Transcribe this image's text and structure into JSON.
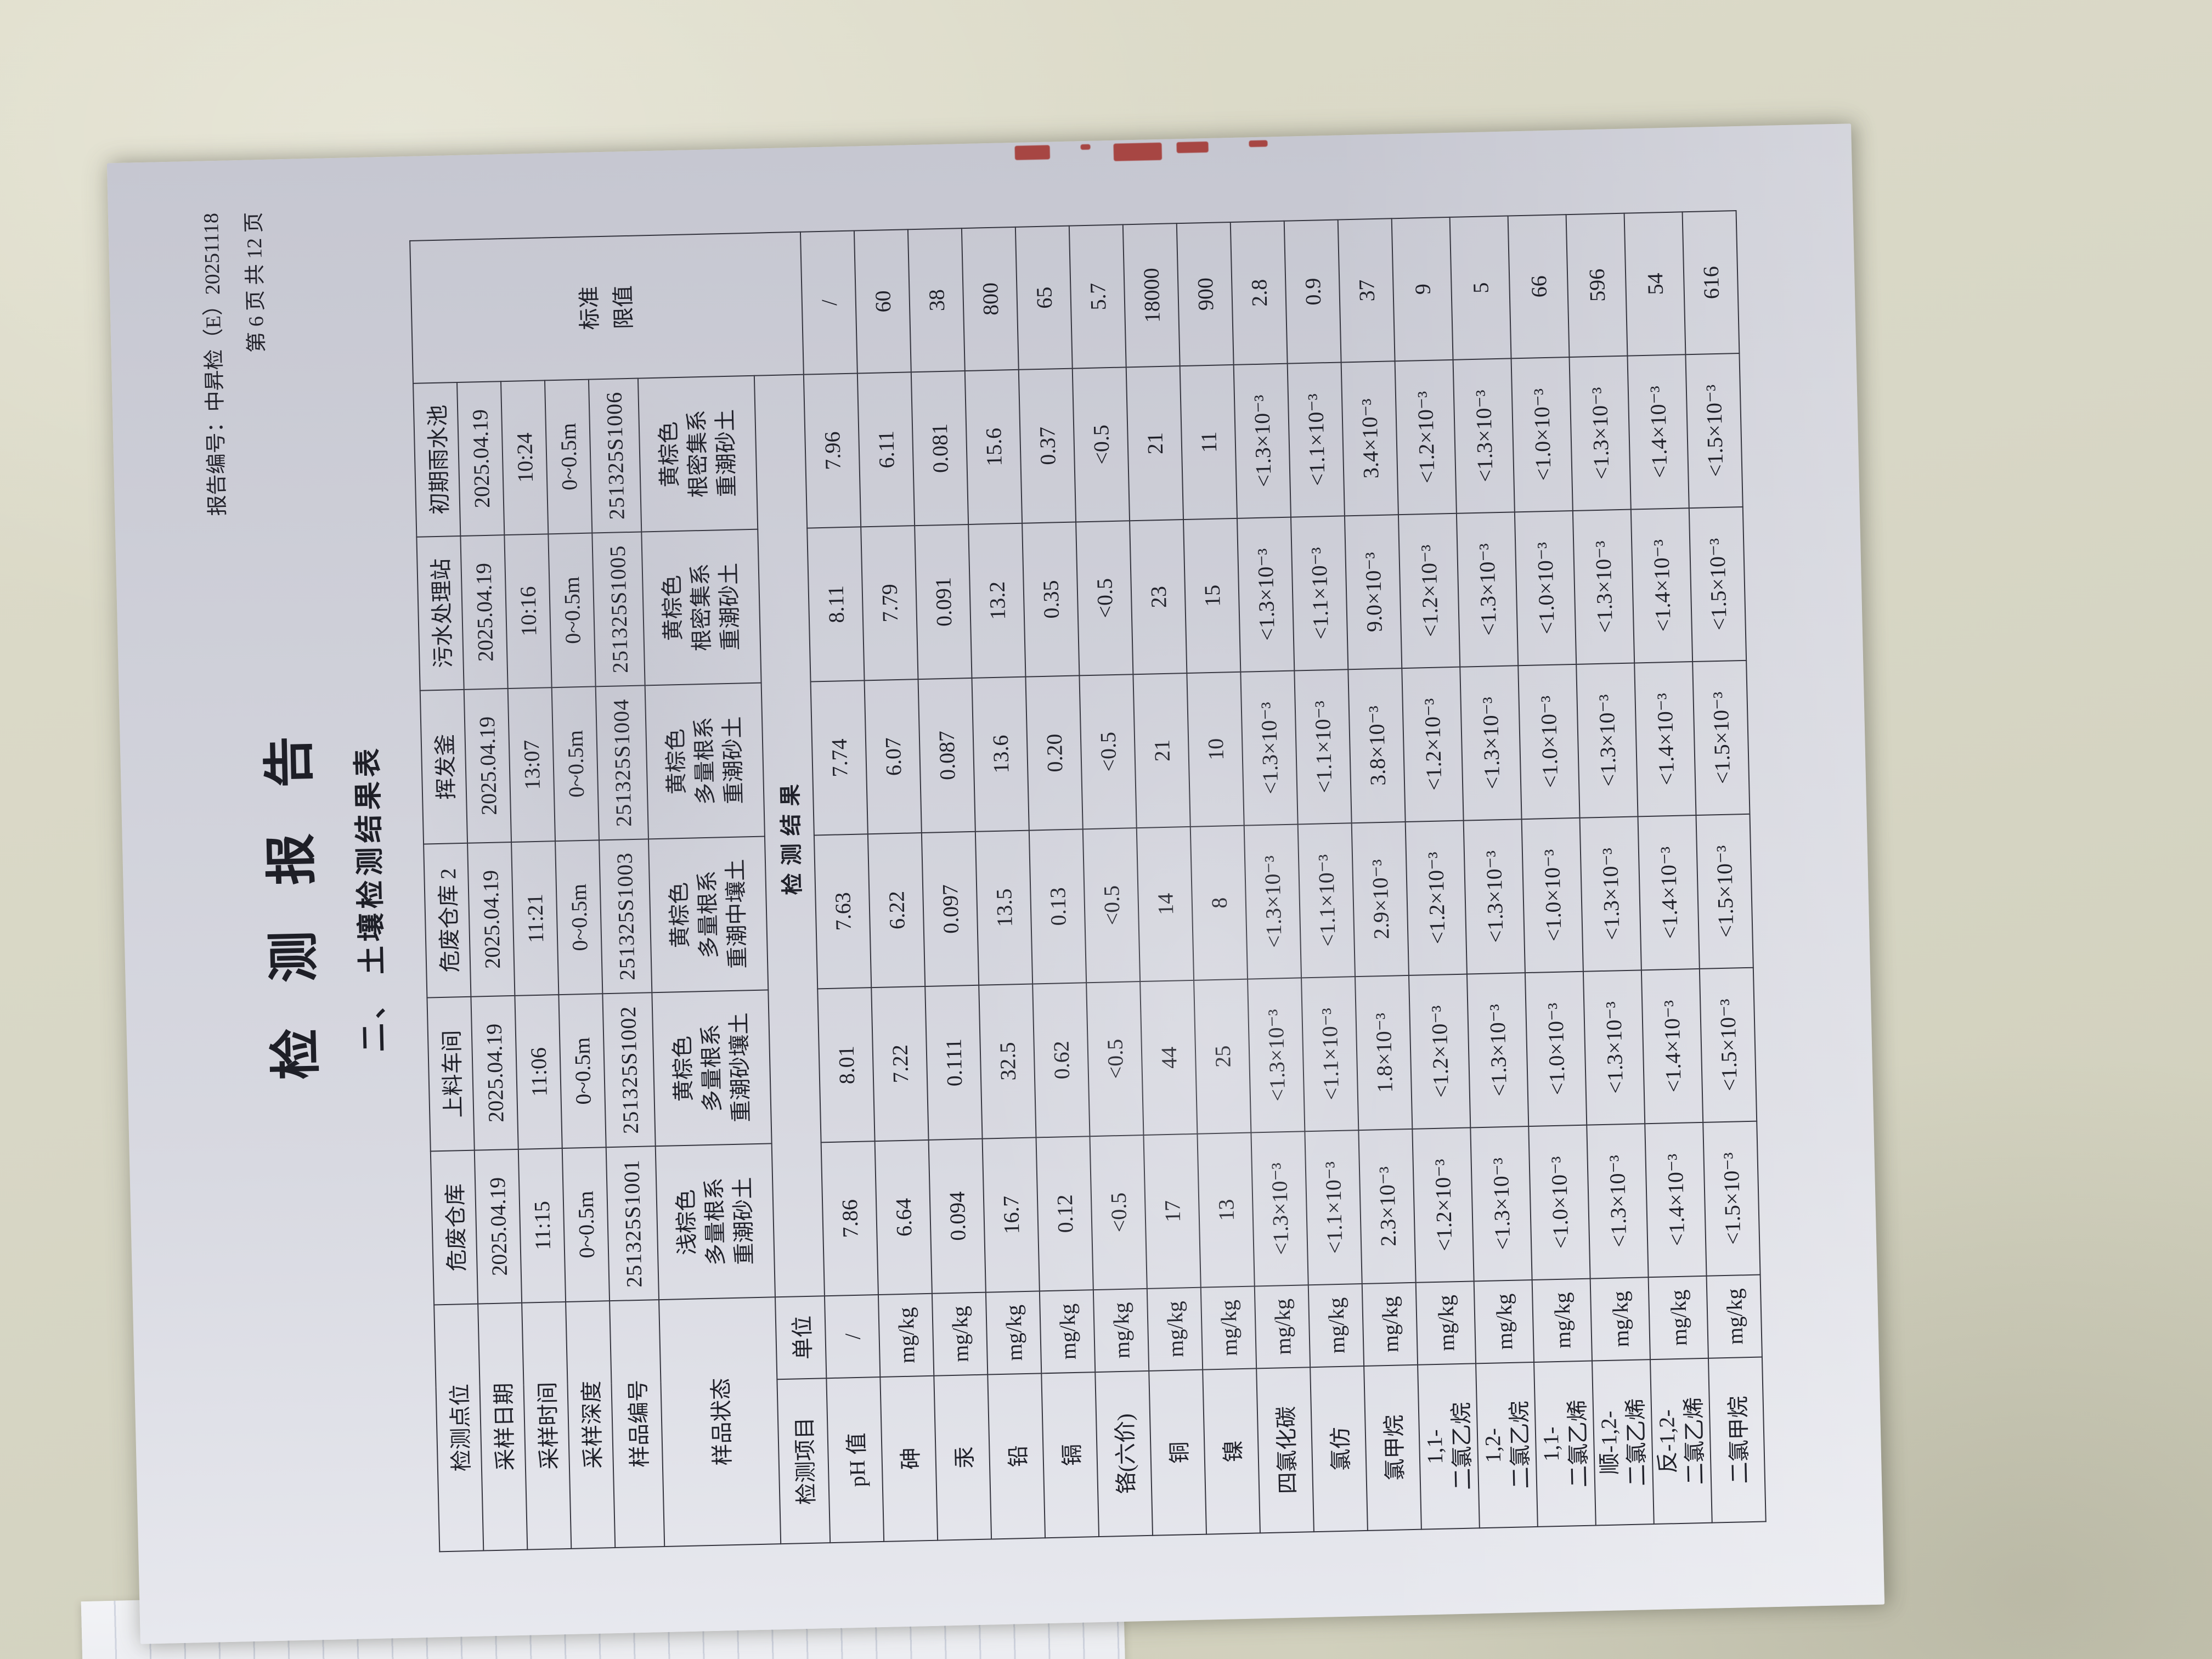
{
  "photo": {
    "desk_color": "#d8d7c6",
    "paper_color": "#cfd0d9",
    "ink_color": "#20212a",
    "stamp_color": "#a33530"
  },
  "header": {
    "report_no": "报告编号：中昇检（E）20251118",
    "page_info": "第 6 页 共 12 页"
  },
  "title": "检  测  报  告",
  "subtitle": "二、 土壤检测结果表",
  "table": {
    "row_labels": [
      "检测点位",
      "采样日期",
      "采样时间",
      "采样深度",
      "样品编号",
      "样品状态"
    ],
    "col_headers": {
      "item": "检测项目",
      "unit": "单位",
      "result": "检测结果",
      "limit_lines": [
        "标准",
        "限值"
      ]
    },
    "samples": [
      {
        "name": "危废仓库",
        "date": "2025.04.19",
        "time": "11:15",
        "depth": "0~0.5m",
        "code": "251325S1001",
        "state": [
          "浅棕色",
          "多量根系",
          "重潮砂土"
        ]
      },
      {
        "name": "上料车间",
        "date": "2025.04.19",
        "time": "11:06",
        "depth": "0~0.5m",
        "code": "251325S1002",
        "state": [
          "黄棕色",
          "多量根系",
          "重潮砂壤土"
        ]
      },
      {
        "name": "危废仓库 2",
        "date": "2025.04.19",
        "time": "11:21",
        "depth": "0~0.5m",
        "code": "251325S1003",
        "state": [
          "黄棕色",
          "多量根系",
          "重潮中壤土"
        ]
      },
      {
        "name": "挥发釜",
        "date": "2025.04.19",
        "time": "13:07",
        "depth": "0~0.5m",
        "code": "251325S1004",
        "state": [
          "黄棕色",
          "多量根系",
          "重潮砂土"
        ]
      },
      {
        "name": "污水处理站",
        "date": "2025.04.19",
        "time": "10:16",
        "depth": "0~0.5m",
        "code": "251325S1005",
        "state": [
          "黄棕色",
          "根密集系",
          "重潮砂土"
        ]
      },
      {
        "name": "初期雨水池",
        "date": "2025.04.19",
        "time": "10:24",
        "depth": "0~0.5m",
        "code": "251325S1006",
        "state": [
          "黄棕色",
          "根密集系",
          "重潮砂土"
        ]
      }
    ],
    "items": [
      {
        "name": [
          "pH 值"
        ],
        "unit": "/",
        "values": [
          "7.86",
          "8.01",
          "7.63",
          "7.74",
          "8.11",
          "7.96"
        ],
        "limit": "/"
      },
      {
        "name": [
          "砷"
        ],
        "unit": "mg/kg",
        "values": [
          "6.64",
          "7.22",
          "6.22",
          "6.07",
          "7.79",
          "6.11"
        ],
        "limit": "60"
      },
      {
        "name": [
          "汞"
        ],
        "unit": "mg/kg",
        "values": [
          "0.094",
          "0.111",
          "0.097",
          "0.087",
          "0.091",
          "0.081"
        ],
        "limit": "38"
      },
      {
        "name": [
          "铅"
        ],
        "unit": "mg/kg",
        "values": [
          "16.7",
          "32.5",
          "13.5",
          "13.6",
          "13.2",
          "15.6"
        ],
        "limit": "800"
      },
      {
        "name": [
          "镉"
        ],
        "unit": "mg/kg",
        "values": [
          "0.12",
          "0.62",
          "0.13",
          "0.20",
          "0.35",
          "0.37"
        ],
        "limit": "65"
      },
      {
        "name": [
          "铬(六价)"
        ],
        "unit": "mg/kg",
        "values": [
          "<0.5",
          "<0.5",
          "<0.5",
          "<0.5",
          "<0.5",
          "<0.5"
        ],
        "limit": "5.7"
      },
      {
        "name": [
          "铜"
        ],
        "unit": "mg/kg",
        "values": [
          "17",
          "44",
          "14",
          "21",
          "23",
          "21"
        ],
        "limit": "18000"
      },
      {
        "name": [
          "镍"
        ],
        "unit": "mg/kg",
        "values": [
          "13",
          "25",
          "8",
          "10",
          "15",
          "11"
        ],
        "limit": "900"
      },
      {
        "name": [
          "四氯化碳"
        ],
        "unit": "mg/kg",
        "values": [
          "<1.3×10⁻³",
          "<1.3×10⁻³",
          "<1.3×10⁻³",
          "<1.3×10⁻³",
          "<1.3×10⁻³",
          "<1.3×10⁻³"
        ],
        "limit": "2.8"
      },
      {
        "name": [
          "氯仿"
        ],
        "unit": "mg/kg",
        "values": [
          "<1.1×10⁻³",
          "<1.1×10⁻³",
          "<1.1×10⁻³",
          "<1.1×10⁻³",
          "<1.1×10⁻³",
          "<1.1×10⁻³"
        ],
        "limit": "0.9"
      },
      {
        "name": [
          "氯甲烷"
        ],
        "unit": "mg/kg",
        "values": [
          "2.3×10⁻³",
          "1.8×10⁻³",
          "2.9×10⁻³",
          "3.8×10⁻³",
          "9.0×10⁻³",
          "3.4×10⁻³"
        ],
        "limit": "37"
      },
      {
        "name": [
          "1,1-",
          "二氯乙烷"
        ],
        "unit": "mg/kg",
        "values": [
          "<1.2×10⁻³",
          "<1.2×10⁻³",
          "<1.2×10⁻³",
          "<1.2×10⁻³",
          "<1.2×10⁻³",
          "<1.2×10⁻³"
        ],
        "limit": "9"
      },
      {
        "name": [
          "1,2-",
          "二氯乙烷"
        ],
        "unit": "mg/kg",
        "values": [
          "<1.3×10⁻³",
          "<1.3×10⁻³",
          "<1.3×10⁻³",
          "<1.3×10⁻³",
          "<1.3×10⁻³",
          "<1.3×10⁻³"
        ],
        "limit": "5"
      },
      {
        "name": [
          "1,1-",
          "二氯乙烯"
        ],
        "unit": "mg/kg",
        "values": [
          "<1.0×10⁻³",
          "<1.0×10⁻³",
          "<1.0×10⁻³",
          "<1.0×10⁻³",
          "<1.0×10⁻³",
          "<1.0×10⁻³"
        ],
        "limit": "66"
      },
      {
        "name": [
          "顺-1,2-",
          "二氯乙烯"
        ],
        "unit": "mg/kg",
        "values": [
          "<1.3×10⁻³",
          "<1.3×10⁻³",
          "<1.3×10⁻³",
          "<1.3×10⁻³",
          "<1.3×10⁻³",
          "<1.3×10⁻³"
        ],
        "limit": "596"
      },
      {
        "name": [
          "反-1,2-",
          "二氯乙烯"
        ],
        "unit": "mg/kg",
        "values": [
          "<1.4×10⁻³",
          "<1.4×10⁻³",
          "<1.4×10⁻³",
          "<1.4×10⁻³",
          "<1.4×10⁻³",
          "<1.4×10⁻³"
        ],
        "limit": "54"
      },
      {
        "name": [
          "二氯甲烷"
        ],
        "unit": "mg/kg",
        "values": [
          "<1.5×10⁻³",
          "<1.5×10⁻³",
          "<1.5×10⁻³",
          "<1.5×10⁻³",
          "<1.5×10⁻³",
          "<1.5×10⁻³"
        ],
        "limit": "616"
      }
    ]
  }
}
